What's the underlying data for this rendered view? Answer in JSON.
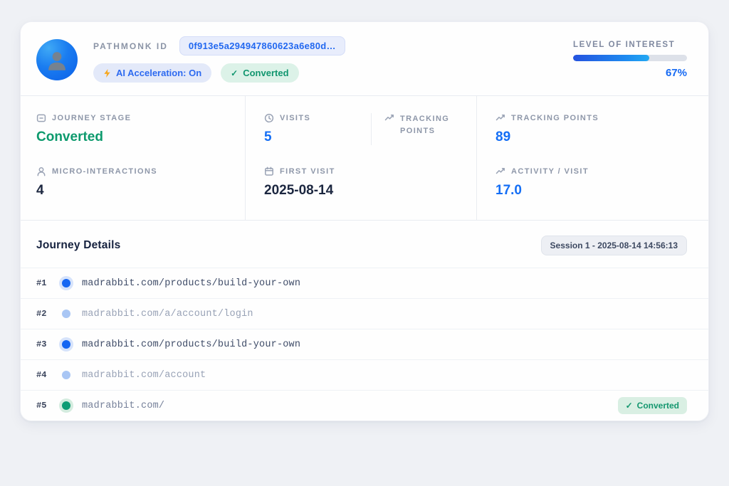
{
  "header": {
    "pathmonk_id_label": "PATHMONK ID",
    "pathmonk_id_value": "0f913e5a294947860623a6e80d…",
    "ai_badge": "AI Acceleration: On",
    "converted_badge": "Converted",
    "level_of_interest_label": "LEVEL OF INTEREST",
    "interest_percent": "67%",
    "interest_value": 67
  },
  "stats": {
    "journey_stage": {
      "label": "JOURNEY STAGE",
      "value": "Converted"
    },
    "micro_interactions": {
      "label": "MICRO-INTERACTIONS",
      "value": "4"
    },
    "visits": {
      "label": "VISITS",
      "value": "5"
    },
    "tracking_points_header": {
      "label": "TRACKING POINTS"
    },
    "first_visit": {
      "label": "FIRST VISIT",
      "value": "2025-08-14"
    },
    "tracking_points": {
      "label": "TRACKING POINTS",
      "value": "89"
    },
    "activity_per_visit": {
      "label": "ACTIVITY / VISIT",
      "value": "17.0"
    }
  },
  "journey": {
    "title": "Journey Details",
    "session_badge": "Session 1 - 2025-08-14 14:56:13",
    "rows": [
      {
        "num": "#1",
        "url": "madrabbit.com/products/build-your-own",
        "state": "visited"
      },
      {
        "num": "#2",
        "url": "madrabbit.com/a/account/login",
        "state": "passive"
      },
      {
        "num": "#3",
        "url": "madrabbit.com/products/build-your-own",
        "state": "visited"
      },
      {
        "num": "#4",
        "url": "madrabbit.com/account",
        "state": "passive"
      },
      {
        "num": "#5",
        "url": "madrabbit.com/",
        "state": "converted",
        "badge": "Converted"
      }
    ]
  },
  "colors": {
    "accent_blue": "#146ef5",
    "accent_green": "#0d9a6d",
    "bolt_orange": "#f6a821",
    "progress_gradient_start": "#2553df",
    "progress_gradient_end": "#23a9f2",
    "card_background": "#fefefe",
    "page_background": "#eff1f5"
  }
}
